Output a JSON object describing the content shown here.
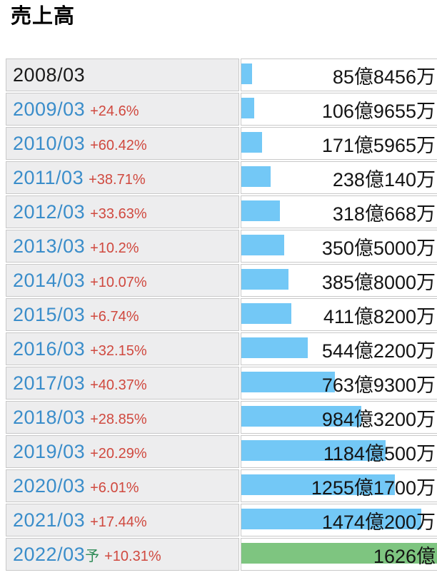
{
  "page": {
    "title": "売上高"
  },
  "colors": {
    "year_link": "#3a8dca",
    "first_year": "#1a1a1a",
    "pct": "#d0493f",
    "forecast_mark": "#2e8b57",
    "bar_blue": "#73c8f6",
    "bar_green": "#7ec580",
    "value_text": "#141414",
    "row_label_bg": "#ededee",
    "cell_border": "#c9c9c9"
  },
  "chart_data": {
    "type": "bar",
    "orientation": "horizontal",
    "title": "売上高",
    "unit": "億円",
    "axis_max": 1626,
    "legend": "none",
    "categories": [
      "2008/03",
      "2009/03",
      "2010/03",
      "2011/03",
      "2012/03",
      "2013/03",
      "2014/03",
      "2015/03",
      "2016/03",
      "2017/03",
      "2018/03",
      "2019/03",
      "2020/03",
      "2021/03",
      "2022/03"
    ],
    "values_oku": [
      85.8456,
      106.9655,
      171.5965,
      238.014,
      318.0668,
      350.5,
      385.8,
      411.82,
      544.22,
      763.93,
      984.32,
      1184.05,
      1255.17,
      1474.02,
      1626
    ],
    "rows": [
      {
        "year": "2008/03",
        "forecast": "",
        "pct": "",
        "value_label": "85億8456万",
        "value_oku": 85.8456,
        "bar": "blue",
        "link": false
      },
      {
        "year": "2009/03",
        "forecast": "",
        "pct": "+24.6%",
        "value_label": "106億9655万",
        "value_oku": 106.9655,
        "bar": "blue",
        "link": true
      },
      {
        "year": "2010/03",
        "forecast": "",
        "pct": "+60.42%",
        "value_label": "171億5965万",
        "value_oku": 171.5965,
        "bar": "blue",
        "link": true
      },
      {
        "year": "2011/03",
        "forecast": "",
        "pct": "+38.71%",
        "value_label": "238億140万",
        "value_oku": 238.014,
        "bar": "blue",
        "link": true
      },
      {
        "year": "2012/03",
        "forecast": "",
        "pct": "+33.63%",
        "value_label": "318億668万",
        "value_oku": 318.0668,
        "bar": "blue",
        "link": true
      },
      {
        "year": "2013/03",
        "forecast": "",
        "pct": "+10.2%",
        "value_label": "350億5000万",
        "value_oku": 350.5,
        "bar": "blue",
        "link": true
      },
      {
        "year": "2014/03",
        "forecast": "",
        "pct": "+10.07%",
        "value_label": "385億8000万",
        "value_oku": 385.8,
        "bar": "blue",
        "link": true
      },
      {
        "year": "2015/03",
        "forecast": "",
        "pct": "+6.74%",
        "value_label": "411億8200万",
        "value_oku": 411.82,
        "bar": "blue",
        "link": true
      },
      {
        "year": "2016/03",
        "forecast": "",
        "pct": "+32.15%",
        "value_label": "544億2200万",
        "value_oku": 544.22,
        "bar": "blue",
        "link": true
      },
      {
        "year": "2017/03",
        "forecast": "",
        "pct": "+40.37%",
        "value_label": "763億9300万",
        "value_oku": 763.93,
        "bar": "blue",
        "link": true
      },
      {
        "year": "2018/03",
        "forecast": "",
        "pct": "+28.85%",
        "value_label": "984億3200万",
        "value_oku": 984.32,
        "bar": "blue",
        "link": true
      },
      {
        "year": "2019/03",
        "forecast": "",
        "pct": "+20.29%",
        "value_label": "1184億500万",
        "value_oku": 1184.05,
        "bar": "blue",
        "link": true
      },
      {
        "year": "2020/03",
        "forecast": "",
        "pct": "+6.01%",
        "value_label": "1255億1700万",
        "value_oku": 1255.17,
        "bar": "blue",
        "link": true
      },
      {
        "year": "2021/03",
        "forecast": "",
        "pct": "+17.44%",
        "value_label": "1474億200万",
        "value_oku": 1474.02,
        "bar": "blue",
        "link": true
      },
      {
        "year": "2022/03",
        "forecast": "予",
        "pct": "+10.31%",
        "value_label": "1626億",
        "value_oku": 1626,
        "bar": "green",
        "link": true
      }
    ]
  }
}
